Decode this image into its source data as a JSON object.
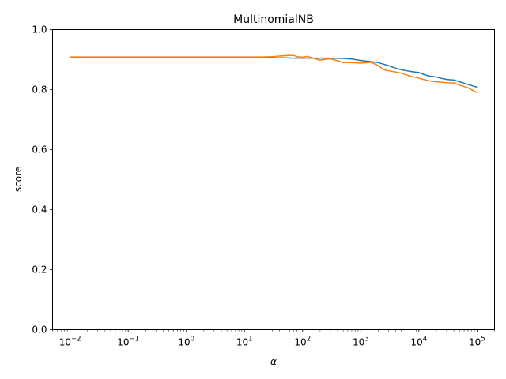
{
  "chart_data": {
    "type": "line",
    "title": "MultinomialNB",
    "xlabel": "α",
    "ylabel": "score",
    "xscale": "log",
    "xlim": [
      0.005,
      200000
    ],
    "ylim": [
      0.0,
      1.0
    ],
    "grid": false,
    "legend": "none",
    "xticks": [
      {
        "value": 0.01,
        "base": "10",
        "exp": "−2"
      },
      {
        "value": 0.1,
        "base": "10",
        "exp": "−1"
      },
      {
        "value": 1,
        "base": "10",
        "exp": "0"
      },
      {
        "value": 10,
        "base": "10",
        "exp": "1"
      },
      {
        "value": 100,
        "base": "10",
        "exp": "2"
      },
      {
        "value": 1000,
        "base": "10",
        "exp": "3"
      },
      {
        "value": 10000,
        "base": "10",
        "exp": "4"
      },
      {
        "value": 100000,
        "base": "10",
        "exp": "5"
      }
    ],
    "yticks": [
      {
        "value": 0.0,
        "label": "0.0"
      },
      {
        "value": 0.2,
        "label": "0.2"
      },
      {
        "value": 0.4,
        "label": "0.4"
      },
      {
        "value": 0.6,
        "label": "0.6"
      },
      {
        "value": 0.8,
        "label": "0.8"
      },
      {
        "value": 1.0,
        "label": "1.0"
      }
    ],
    "series": [
      {
        "color": "#1f77b4",
        "x": [
          0.01,
          0.1,
          1,
          10,
          20,
          30,
          50,
          70,
          100,
          150,
          200,
          300,
          500,
          700,
          1000,
          1500,
          2000,
          3000,
          4000,
          5000,
          7000,
          10000,
          12000,
          15000,
          20000,
          25000,
          30000,
          40000,
          50000,
          70000,
          100000
        ],
        "y": [
          0.906,
          0.906,
          0.906,
          0.906,
          0.906,
          0.906,
          0.906,
          0.905,
          0.905,
          0.905,
          0.905,
          0.905,
          0.904,
          0.902,
          0.897,
          0.893,
          0.89,
          0.88,
          0.871,
          0.866,
          0.861,
          0.857,
          0.851,
          0.845,
          0.842,
          0.837,
          0.834,
          0.832,
          0.826,
          0.817,
          0.808
        ]
      },
      {
        "color": "#ff7f0e",
        "x": [
          0.01,
          0.1,
          1,
          10,
          20,
          30,
          40,
          50,
          60,
          70,
          80,
          100,
          120,
          150,
          200,
          250,
          300,
          400,
          500,
          700,
          1000,
          1500,
          2000,
          2500,
          3000,
          5000,
          7000,
          10000,
          15000,
          20000,
          30000,
          40000,
          50000,
          70000,
          100000
        ],
        "y": [
          0.909,
          0.909,
          0.909,
          0.909,
          0.909,
          0.91,
          0.912,
          0.913,
          0.914,
          0.914,
          0.91,
          0.908,
          0.911,
          0.905,
          0.898,
          0.901,
          0.903,
          0.896,
          0.89,
          0.89,
          0.888,
          0.891,
          0.88,
          0.866,
          0.863,
          0.855,
          0.845,
          0.838,
          0.829,
          0.826,
          0.823,
          0.822,
          0.815,
          0.806,
          0.79
        ]
      }
    ]
  }
}
